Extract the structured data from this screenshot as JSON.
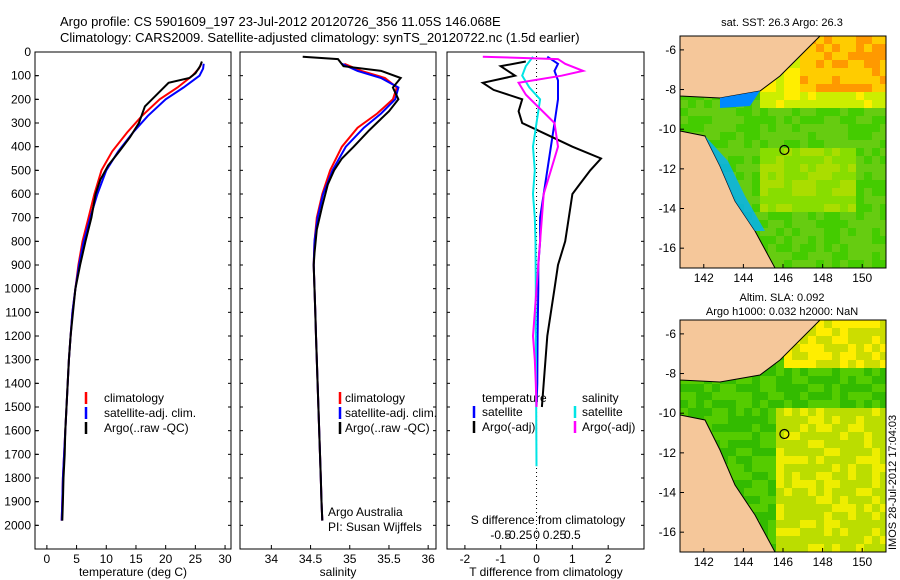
{
  "header": {
    "title_line1": "Argo profile: CS 5901609_197 23-Jul-2012 20120726_356 11.05S 146.068E",
    "title_line2": "Climatology: CARS2009. Satellite-adjusted climatology: synTS_20120722.nc (1.5d earlier)"
  },
  "watermark": "IMOS 28-Jul-2012 17:04:03",
  "colors": {
    "climatology": "#ff0000",
    "satellite": "#0000ff",
    "argo": "#000000",
    "salinity_sat": "#00e5e5",
    "salinity_argo": "#ff00ff",
    "land": "#f5c79a"
  },
  "chart_data": [
    {
      "id": "temperature",
      "type": "line",
      "xlabel": "temperature (deg C)",
      "ylabel": "",
      "xlim": [
        -2,
        31
      ],
      "ylim": [
        2100,
        0
      ],
      "x_ticks": [
        0,
        5,
        10,
        15,
        20,
        25,
        30
      ],
      "y_ticks": [
        0,
        100,
        200,
        300,
        400,
        500,
        600,
        700,
        800,
        900,
        1000,
        1100,
        1200,
        1300,
        1400,
        1500,
        1600,
        1700,
        1800,
        1900,
        2000
      ],
      "legend": [
        "climatology",
        "satellite-adj. clim.",
        "Argo(..raw -QC)"
      ],
      "series": [
        {
          "name": "climatology",
          "color": "#ff0000",
          "points": [
            [
              26.0,
              50
            ],
            [
              25.6,
              70
            ],
            [
              24.5,
              100
            ],
            [
              22.0,
              150
            ],
            [
              19.0,
              200
            ],
            [
              16.0,
              270
            ],
            [
              13.5,
              340
            ],
            [
              11.0,
              420
            ],
            [
              9.2,
              500
            ],
            [
              8.0,
              600
            ],
            [
              7.0,
              700
            ],
            [
              6.0,
              800
            ],
            [
              5.3,
              900
            ],
            [
              4.8,
              1000
            ],
            [
              4.3,
              1100
            ],
            [
              4.0,
              1200
            ],
            [
              3.7,
              1300
            ],
            [
              3.5,
              1400
            ],
            [
              3.3,
              1500
            ],
            [
              3.1,
              1600
            ],
            [
              2.9,
              1700
            ],
            [
              2.7,
              1800
            ],
            [
              2.6,
              1900
            ],
            [
              2.5,
              1980
            ]
          ]
        },
        {
          "name": "satellite-adj. clim.",
          "color": "#0000ff",
          "points": [
            [
              26.4,
              50
            ],
            [
              26.3,
              70
            ],
            [
              25.7,
              100
            ],
            [
              23.0,
              150
            ],
            [
              20.0,
              200
            ],
            [
              17.0,
              270
            ],
            [
              14.5,
              340
            ],
            [
              12.0,
              420
            ],
            [
              10.0,
              500
            ],
            [
              8.5,
              600
            ],
            [
              7.3,
              700
            ],
            [
              6.2,
              800
            ],
            [
              5.4,
              900
            ],
            [
              4.8,
              1000
            ],
            [
              4.3,
              1100
            ],
            [
              4.0,
              1200
            ],
            [
              3.7,
              1300
            ],
            [
              3.5,
              1400
            ],
            [
              3.3,
              1500
            ],
            [
              3.1,
              1600
            ],
            [
              2.9,
              1700
            ],
            [
              2.7,
              1800
            ],
            [
              2.6,
              1900
            ],
            [
              2.5,
              1980
            ]
          ]
        },
        {
          "name": "Argo(..raw -QC)",
          "color": "#000000",
          "points": [
            [
              26.1,
              40
            ],
            [
              25.8,
              60
            ],
            [
              25.0,
              90
            ],
            [
              24.0,
              110
            ],
            [
              20.5,
              130
            ],
            [
              18.5,
              180
            ],
            [
              16.5,
              230
            ],
            [
              15.5,
              300
            ],
            [
              14.0,
              360
            ],
            [
              12.2,
              420
            ],
            [
              10.3,
              480
            ],
            [
              9.0,
              540
            ],
            [
              8.2,
              600
            ],
            [
              7.5,
              700
            ],
            [
              6.5,
              800
            ],
            [
              5.6,
              900
            ],
            [
              4.8,
              1000
            ],
            [
              4.4,
              1100
            ],
            [
              4.0,
              1200
            ],
            [
              3.7,
              1300
            ],
            [
              3.5,
              1400
            ],
            [
              3.3,
              1500
            ],
            [
              3.1,
              1600
            ],
            [
              3.0,
              1700
            ],
            [
              2.8,
              1800
            ],
            [
              2.7,
              1900
            ],
            [
              2.6,
              1980
            ]
          ]
        }
      ]
    },
    {
      "id": "salinity",
      "type": "line",
      "xlabel": "salinity",
      "ylabel": "",
      "xlim": [
        33.6,
        36.1
      ],
      "ylim": [
        2100,
        0
      ],
      "x_ticks": [
        34,
        34.5,
        35,
        35.5,
        36
      ],
      "legend": [
        "climatology",
        "satellite-adj. clim.",
        "Argo(..raw -QC)"
      ],
      "annotation": [
        "Argo Australia",
        "PI: Susan Wijffels"
      ],
      "series": [
        {
          "name": "climatology",
          "color": "#ff0000",
          "points": [
            [
              34.93,
              50
            ],
            [
              35.15,
              80
            ],
            [
              35.45,
              110
            ],
            [
              35.6,
              150
            ],
            [
              35.55,
              200
            ],
            [
              35.35,
              260
            ],
            [
              35.1,
              320
            ],
            [
              34.9,
              400
            ],
            [
              34.75,
              500
            ],
            [
              34.65,
              600
            ],
            [
              34.58,
              700
            ],
            [
              34.55,
              800
            ],
            [
              34.54,
              900
            ],
            [
              34.55,
              1000
            ],
            [
              34.56,
              1100
            ],
            [
              34.57,
              1200
            ],
            [
              34.58,
              1300
            ],
            [
              34.59,
              1400
            ],
            [
              34.6,
              1500
            ],
            [
              34.61,
              1600
            ],
            [
              34.62,
              1700
            ],
            [
              34.63,
              1800
            ],
            [
              34.64,
              1900
            ],
            [
              34.65,
              1980
            ]
          ]
        },
        {
          "name": "satellite-adj. clim.",
          "color": "#0000ff",
          "points": [
            [
              34.9,
              50
            ],
            [
              35.1,
              80
            ],
            [
              35.4,
              110
            ],
            [
              35.62,
              150
            ],
            [
              35.58,
              200
            ],
            [
              35.4,
              260
            ],
            [
              35.18,
              320
            ],
            [
              34.95,
              400
            ],
            [
              34.78,
              500
            ],
            [
              34.66,
              600
            ],
            [
              34.59,
              700
            ],
            [
              34.55,
              800
            ],
            [
              34.54,
              900
            ],
            [
              34.55,
              1000
            ],
            [
              34.56,
              1100
            ],
            [
              34.57,
              1200
            ],
            [
              34.58,
              1300
            ],
            [
              34.59,
              1400
            ],
            [
              34.6,
              1500
            ],
            [
              34.61,
              1600
            ],
            [
              34.62,
              1700
            ],
            [
              34.63,
              1800
            ],
            [
              34.64,
              1900
            ],
            [
              34.65,
              1980
            ]
          ]
        },
        {
          "name": "Argo(..raw -QC)",
          "color": "#000000",
          "points": [
            [
              34.4,
              20
            ],
            [
              34.85,
              30
            ],
            [
              34.92,
              60
            ],
            [
              35.4,
              80
            ],
            [
              35.65,
              110
            ],
            [
              35.55,
              150
            ],
            [
              35.62,
              200
            ],
            [
              35.5,
              250
            ],
            [
              35.25,
              330
            ],
            [
              35.05,
              400
            ],
            [
              34.9,
              450
            ],
            [
              34.8,
              500
            ],
            [
              34.72,
              560
            ],
            [
              34.65,
              650
            ],
            [
              34.58,
              750
            ],
            [
              34.55,
              850
            ],
            [
              34.54,
              900
            ],
            [
              34.55,
              1000
            ],
            [
              34.56,
              1100
            ],
            [
              34.57,
              1200
            ],
            [
              34.58,
              1300
            ],
            [
              34.59,
              1400
            ],
            [
              34.6,
              1500
            ],
            [
              34.61,
              1600
            ],
            [
              34.62,
              1700
            ],
            [
              34.63,
              1800
            ],
            [
              34.64,
              1900
            ],
            [
              34.65,
              1980
            ]
          ]
        }
      ]
    },
    {
      "id": "differences",
      "type": "line",
      "xlabel": "T difference from climatology",
      "top_label": "S difference from climatology",
      "xlim": [
        -2.5,
        3
      ],
      "ylim": [
        2100,
        0
      ],
      "x_ticks": [
        -2,
        -1,
        0,
        1,
        2
      ],
      "top_ticks": [
        {
          "v": -1,
          "l": "-0.5"
        },
        {
          "v": -0.5,
          "l": "-0.25"
        },
        {
          "v": 0,
          "l": "0"
        },
        {
          "v": 0.5,
          "l": "0.25"
        },
        {
          "v": 1,
          "l": "0.5"
        }
      ],
      "legend_t_title": "temperature",
      "legend_s_title": "salinity",
      "legend": [
        "satellite",
        "Argo(-adj)",
        "satellite",
        "Argo(-adj)"
      ],
      "series": [
        {
          "name": "T satellite",
          "color": "#0000ff",
          "points": [
            [
              0.3,
              20
            ],
            [
              0.6,
              50
            ],
            [
              0.5,
              80
            ],
            [
              0.6,
              120
            ],
            [
              0.6,
              200
            ],
            [
              0.5,
              300
            ],
            [
              0.4,
              400
            ],
            [
              0.3,
              500
            ],
            [
              0.2,
              600
            ],
            [
              0.1,
              700
            ],
            [
              0.1,
              800
            ],
            [
              0.05,
              900
            ],
            [
              0.05,
              1000
            ],
            [
              0.03,
              1200
            ],
            [
              0.02,
              1400
            ],
            [
              0,
              1500
            ]
          ]
        },
        {
          "name": "T Argo(-adj)",
          "color": "#000000",
          "points": [
            [
              -0.3,
              40
            ],
            [
              -1.0,
              60
            ],
            [
              -0.6,
              100
            ],
            [
              -1.5,
              130
            ],
            [
              -1.2,
              160
            ],
            [
              -0.4,
              200
            ],
            [
              -0.5,
              250
            ],
            [
              -0.4,
              300
            ],
            [
              0.3,
              350
            ],
            [
              1.0,
              400
            ],
            [
              1.8,
              450
            ],
            [
              1.5,
              500
            ],
            [
              1.2,
              560
            ],
            [
              1.0,
              600
            ],
            [
              0.9,
              700
            ],
            [
              0.8,
              800
            ],
            [
              0.6,
              900
            ],
            [
              0.5,
              1000
            ],
            [
              0.4,
              1100
            ],
            [
              0.3,
              1200
            ],
            [
              0.25,
              1300
            ],
            [
              0.2,
              1400
            ],
            [
              0.15,
              1500
            ]
          ]
        },
        {
          "name": "S satellite",
          "color": "#00e5e5",
          "points": [
            [
              -0.1,
              20
            ],
            [
              -0.3,
              60
            ],
            [
              -0.4,
              100
            ],
            [
              -0.2,
              150
            ],
            [
              0.1,
              200
            ],
            [
              0.0,
              300
            ],
            [
              -0.1,
              400
            ],
            [
              -0.05,
              500
            ],
            [
              -0.1,
              600
            ],
            [
              -0.05,
              700
            ],
            [
              -0.03,
              800
            ],
            [
              -0.02,
              1000
            ],
            [
              -0.02,
              1200
            ],
            [
              -0.01,
              1500
            ],
            [
              0,
              1750
            ]
          ]
        },
        {
          "name": "S Argo(-adj)",
          "color": "#ff00ff",
          "points": [
            [
              -1.5,
              20
            ],
            [
              0.6,
              30
            ],
            [
              0.8,
              50
            ],
            [
              1.3,
              80
            ],
            [
              0.7,
              100
            ],
            [
              -0.5,
              130
            ],
            [
              -0.3,
              180
            ],
            [
              0.5,
              300
            ],
            [
              0.6,
              400
            ],
            [
              0.4,
              500
            ],
            [
              0.2,
              600
            ],
            [
              0.1,
              800
            ],
            [
              0.0,
              1000
            ],
            [
              -0.05,
              1100
            ],
            [
              -0.1,
              1200
            ],
            [
              -0.05,
              1300
            ],
            [
              -0.02,
              1400
            ],
            [
              0,
              1500
            ]
          ]
        }
      ]
    },
    {
      "id": "sst_map",
      "type": "heatmap",
      "title": "sat. SST: 26.3  Argo: 26.3",
      "x_ticks": [
        142,
        144,
        146,
        148,
        150
      ],
      "y_ticks": [
        -6,
        -8,
        -10,
        -12,
        -14,
        -16
      ],
      "xlim": [
        140.8,
        151.2
      ],
      "ylim": [
        -17,
        -5.3
      ],
      "argo_position": {
        "lon": 146.07,
        "lat": -11.05
      }
    },
    {
      "id": "sla_map",
      "type": "heatmap",
      "title_line1": "Altim. SLA: 0.092",
      "title_line2": "Argo h1000: 0.032 h2000: NaN",
      "x_ticks": [
        142,
        144,
        146,
        148,
        150
      ],
      "y_ticks": [
        -6,
        -8,
        -10,
        -12,
        -14,
        -16
      ],
      "xlim": [
        140.8,
        151.2
      ],
      "ylim": [
        -17,
        -5.3
      ],
      "argo_position": {
        "lon": 146.07,
        "lat": -11.05
      }
    }
  ]
}
